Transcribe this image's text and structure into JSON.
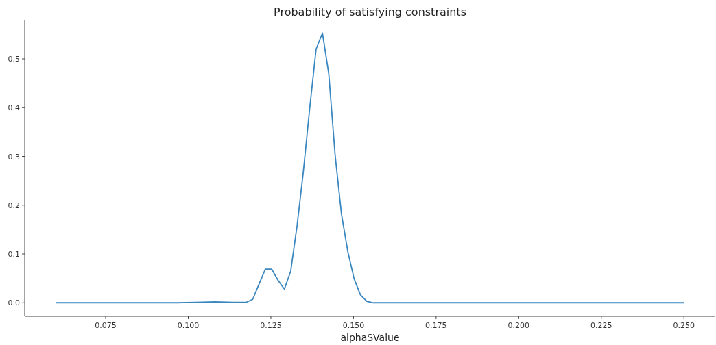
{
  "chart_data": {
    "type": "line",
    "title": "Probability of satisfying constraints",
    "xlabel": "alphaSValue",
    "series": [
      {
        "color": "#3a87c0",
        "x": [
          0.06,
          0.08,
          0.0965,
          0.1023,
          0.108,
          0.1138,
          0.11758,
          0.1195,
          0.12141,
          0.12333,
          0.12525,
          0.12717,
          0.12909,
          0.13101,
          0.13293,
          0.13485,
          0.13677,
          0.13869,
          0.14061,
          0.14253,
          0.14444,
          0.14636,
          0.14828,
          0.1502,
          0.15212,
          0.15404,
          0.15596,
          0.2,
          0.25
        ],
        "values": [
          0,
          0,
          0,
          0.001,
          0.002,
          0.001,
          0.001,
          0.007,
          0.038,
          0.069,
          0.069,
          0.046,
          0.028,
          0.065,
          0.158,
          0.27,
          0.4,
          0.52,
          0.553,
          0.469,
          0.303,
          0.182,
          0.105,
          0.049,
          0.016,
          0.003,
          0,
          0,
          0
        ]
      }
    ],
    "xlim": [
      0.0505,
      0.2595
    ],
    "xticks": [
      {
        "value": 0.075,
        "label": "0.075"
      },
      {
        "value": 0.1,
        "label": "0.100"
      },
      {
        "value": 0.125,
        "label": "0.125"
      },
      {
        "value": 0.15,
        "label": "0.150"
      },
      {
        "value": 0.175,
        "label": "0.175"
      },
      {
        "value": 0.2,
        "label": "0.200"
      },
      {
        "value": 0.225,
        "label": "0.225"
      },
      {
        "value": 0.25,
        "label": "0.250"
      }
    ],
    "ylim": [
      -0.0277,
      0.58
    ],
    "yticks": [
      {
        "value": 0,
        "label": "0.0"
      },
      {
        "value": 0.1,
        "label": "0.1"
      },
      {
        "value": 0.2,
        "label": "0.2"
      },
      {
        "value": 0.3,
        "label": "0.3"
      },
      {
        "value": 0.4,
        "label": "0.4"
      },
      {
        "value": 0.5,
        "label": "0.5"
      }
    ],
    "grid": false
  }
}
